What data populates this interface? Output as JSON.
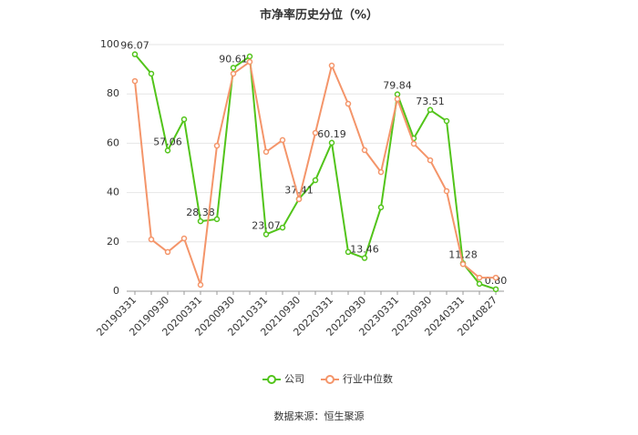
{
  "chart_data": {
    "type": "line",
    "title": "市净率历史分位（%）",
    "source": "数据来源：恒生聚源",
    "categories": [
      "20190331",
      null,
      "20190930",
      null,
      "20200331",
      null,
      "20200930",
      null,
      "20210331",
      null,
      "20210930",
      null,
      "20220331",
      null,
      "20220930",
      null,
      "20230331",
      null,
      "20230930",
      null,
      "20240331",
      null,
      "20240827"
    ],
    "ylim": [
      0,
      100
    ],
    "yticks": [
      0,
      20,
      40,
      60,
      80,
      100
    ],
    "grid": true,
    "legend": "bottom",
    "series": [
      {
        "name": "公司",
        "color": "#52c41a",
        "values": [
          96.07,
          88.2,
          57.06,
          69.7,
          28.38,
          29.2,
          90.61,
          95.2,
          23.07,
          25.8,
          37.41,
          45,
          60.19,
          15.9,
          13.46,
          34,
          79.84,
          62,
          73.51,
          69,
          11.28,
          3,
          0.8
        ],
        "value_labels": [
          "96.07",
          null,
          "57.06",
          null,
          "28.38",
          null,
          "90.61",
          null,
          "23.07",
          null,
          "37.41",
          null,
          "60.19",
          null,
          "13.46",
          null,
          "79.84",
          null,
          "73.51",
          null,
          "11.28",
          null,
          "0.80"
        ]
      },
      {
        "name": "行业中位数",
        "color": "#f4956a",
        "values": [
          85.2,
          21,
          15.9,
          21.4,
          2.6,
          59,
          88.2,
          93,
          56.5,
          61.3,
          37.3,
          64.2,
          91.5,
          76,
          57.2,
          48.3,
          77.9,
          59.8,
          53.1,
          40.6,
          11,
          5.5,
          5.5
        ]
      }
    ]
  }
}
